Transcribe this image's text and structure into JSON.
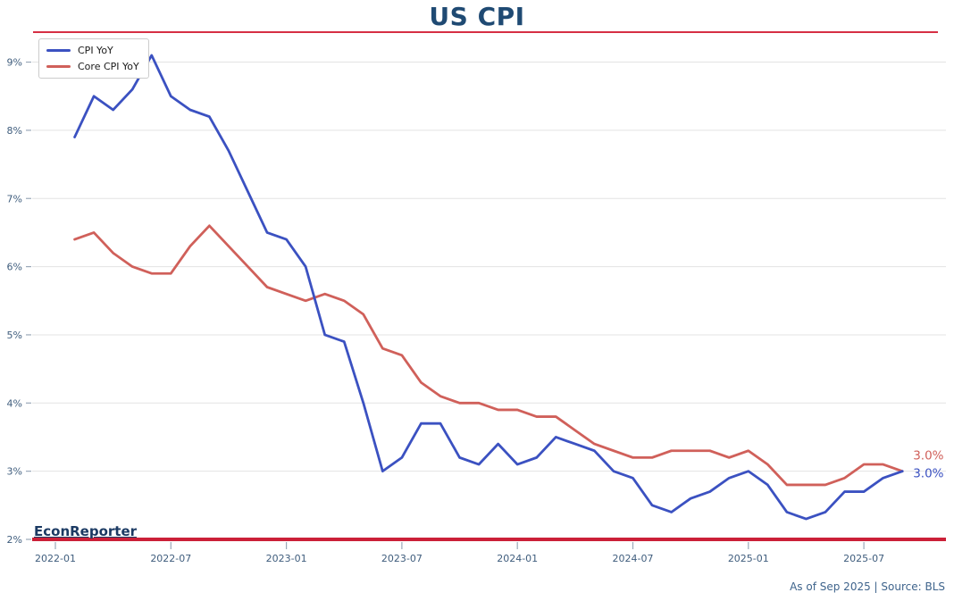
{
  "chart_data": {
    "type": "line",
    "title": "US CPI",
    "x": [
      "2022-02",
      "2022-03",
      "2022-04",
      "2022-05",
      "2022-06",
      "2022-07",
      "2022-08",
      "2022-09",
      "2022-10",
      "2022-11",
      "2022-12",
      "2023-01",
      "2023-02",
      "2023-03",
      "2023-04",
      "2023-05",
      "2023-06",
      "2023-07",
      "2023-08",
      "2023-09",
      "2023-10",
      "2023-11",
      "2023-12",
      "2024-01",
      "2024-02",
      "2024-03",
      "2024-04",
      "2024-05",
      "2024-06",
      "2024-07",
      "2024-08",
      "2024-09",
      "2024-10",
      "2024-11",
      "2024-12",
      "2025-01",
      "2025-02",
      "2025-03",
      "2025-04",
      "2025-05",
      "2025-06",
      "2025-07",
      "2025-08",
      "2025-09"
    ],
    "series": [
      {
        "name": "CPI YoY",
        "color": "#3b51c1",
        "end_label": "3.0%",
        "values": [
          7.9,
          8.5,
          8.3,
          8.6,
          9.1,
          8.5,
          8.3,
          8.2,
          7.7,
          7.1,
          6.5,
          6.4,
          6.0,
          5.0,
          4.9,
          4.0,
          3.0,
          3.2,
          3.7,
          3.7,
          3.2,
          3.1,
          3.4,
          3.1,
          3.2,
          3.5,
          3.4,
          3.3,
          3.0,
          2.9,
          2.5,
          2.4,
          2.6,
          2.7,
          2.9,
          3.0,
          2.8,
          2.4,
          2.3,
          2.4,
          2.7,
          2.7,
          2.9,
          3.0
        ]
      },
      {
        "name": "Core CPI YoY",
        "color": "#d0605a",
        "end_label": "3.0%",
        "values": [
          6.4,
          6.5,
          6.2,
          6.0,
          5.9,
          5.9,
          6.3,
          6.6,
          6.3,
          6.0,
          5.7,
          5.6,
          5.5,
          5.6,
          5.5,
          5.3,
          4.8,
          4.7,
          4.3,
          4.1,
          4.0,
          4.0,
          3.9,
          3.9,
          3.8,
          3.8,
          3.6,
          3.4,
          3.3,
          3.2,
          3.2,
          3.3,
          3.3,
          3.3,
          3.2,
          3.3,
          3.1,
          2.8,
          2.8,
          2.8,
          2.9,
          3.1,
          3.1,
          3.0
        ]
      }
    ],
    "xlabel": "",
    "ylabel": "",
    "ylim": [
      2,
      9.45
    ],
    "yticks": [
      "2%",
      "3%",
      "4%",
      "5%",
      "6%",
      "7%",
      "8%",
      "9%"
    ],
    "xticks": [
      "2022-01",
      "2022-07",
      "2023-01",
      "2023-07",
      "2024-01",
      "2024-07",
      "2025-01",
      "2025-07"
    ],
    "grid": "horizontal-only",
    "legend_position": "upper-left",
    "reference_line": {
      "value": 2,
      "color": "#cb2038"
    }
  },
  "watermark": {
    "text": "EconReporter"
  },
  "footer": {
    "text": "As of Sep 2025 | Source: BLS"
  },
  "colors": {
    "title": "#1f4a73",
    "title_underline": "#d62f44",
    "axis_text": "#3f5d7d",
    "tick": "#9aa8b8",
    "grid": "#e3e3e3",
    "legend_border": "#cccccc",
    "watermark": "#1b3a63",
    "footer": "#3f648c"
  }
}
